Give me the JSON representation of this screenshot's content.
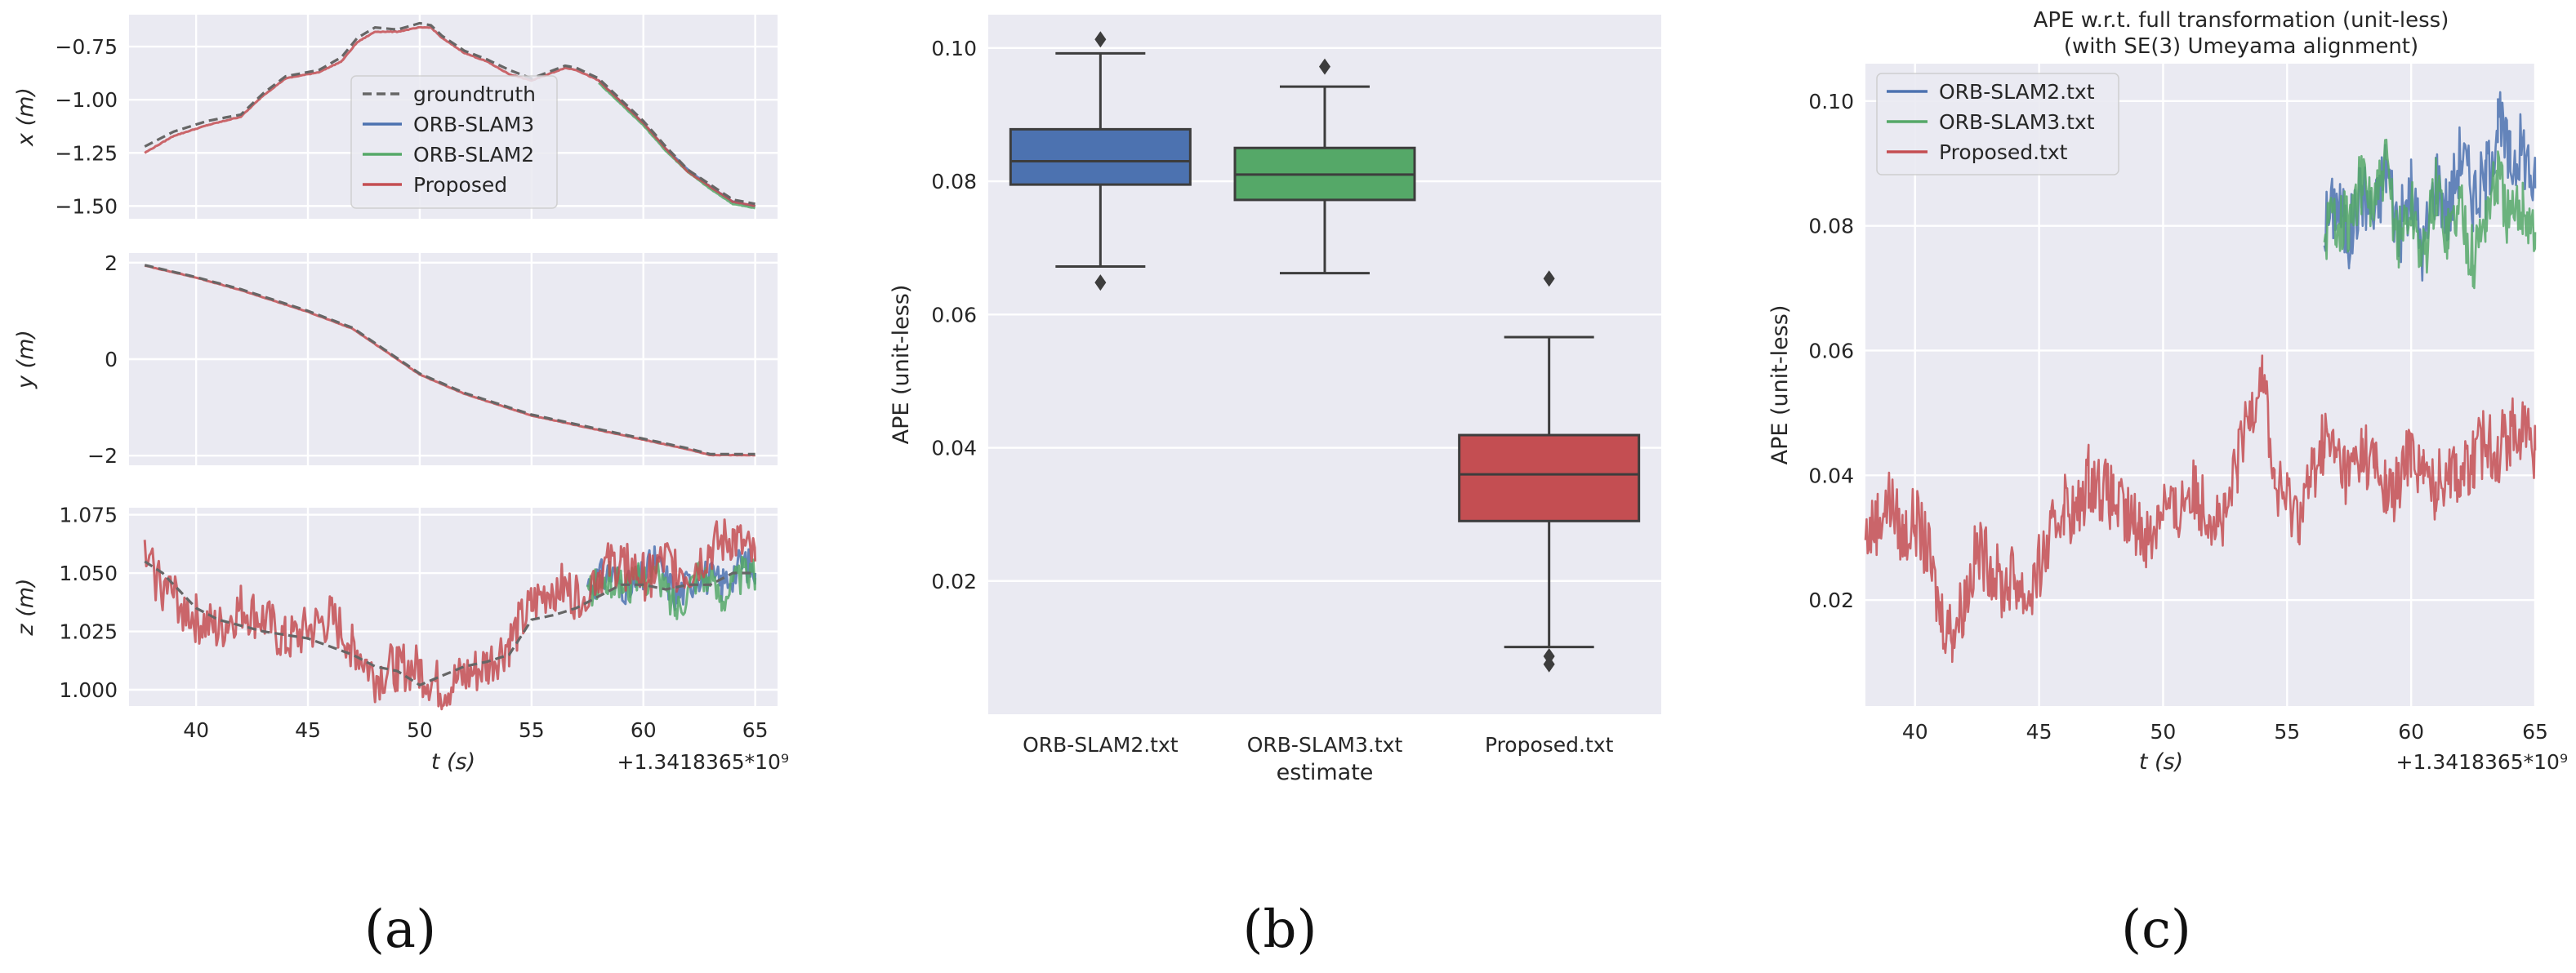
{
  "colors": {
    "groundtruth": "#666666",
    "orb_slam3": "#4c72b0",
    "orb_slam2": "#55a868",
    "proposed": "#c44e52",
    "axes_bg": "#eaeaf2"
  },
  "chart_data": [
    {
      "type": "line",
      "panel": "a",
      "panel_label": "(a)",
      "xlabel": "t (s)",
      "x_offset_label": "+1.3418365*10⁹",
      "xlim": [
        37,
        66
      ],
      "x_ticks": [
        40,
        45,
        50,
        55,
        60,
        65
      ],
      "legend": [
        "groundtruth",
        "ORB-SLAM3",
        "ORB-SLAM2",
        "Proposed"
      ],
      "legend_position": "upper-center of x subplot",
      "subplots": [
        {
          "ylabel": "x (m)",
          "ylim": [
            -1.56,
            -0.6
          ],
          "y_ticks": [
            -0.75,
            -1.0,
            -1.25,
            -1.5
          ],
          "y_tick_labels": [
            "−0.75",
            "−1.00",
            "−1.25",
            "−1.50"
          ],
          "series": [
            {
              "name": "groundtruth",
              "x": [
                37.7,
                39,
                40.5,
                42,
                43,
                44,
                45.5,
                46.5,
                47.2,
                48,
                49,
                50,
                50.5,
                51,
                52,
                53,
                54,
                55,
                56,
                56.5,
                57,
                58,
                59,
                60,
                61,
                62,
                63,
                64,
                65
              ],
              "values": [
                -1.22,
                -1.15,
                -1.1,
                -1.07,
                -0.97,
                -0.89,
                -0.86,
                -0.8,
                -0.71,
                -0.66,
                -0.67,
                -0.64,
                -0.65,
                -0.7,
                -0.77,
                -0.81,
                -0.86,
                -0.9,
                -0.86,
                -0.84,
                -0.85,
                -0.9,
                -1.0,
                -1.1,
                -1.22,
                -1.33,
                -1.4,
                -1.47,
                -1.49
              ]
            },
            {
              "name": "ORB-SLAM3",
              "x": [
                58,
                59,
                60,
                61,
                62,
                63,
                64,
                65
              ],
              "values": [
                -0.91,
                -1.01,
                -1.11,
                -1.23,
                -1.33,
                -1.41,
                -1.48,
                -1.5
              ]
            },
            {
              "name": "ORB-SLAM2",
              "x": [
                58,
                59,
                60,
                61,
                62,
                63,
                64,
                65
              ],
              "values": [
                -0.92,
                -1.02,
                -1.12,
                -1.24,
                -1.34,
                -1.42,
                -1.49,
                -1.51
              ]
            },
            {
              "name": "Proposed",
              "x": [
                37.7,
                39,
                40.5,
                42,
                43,
                44,
                45.5,
                46.5,
                47.2,
                48,
                49,
                50,
                50.5,
                51,
                52,
                53,
                54,
                55,
                56,
                56.5,
                57,
                58,
                59,
                60,
                61,
                62,
                63,
                64,
                65
              ],
              "values": [
                -1.25,
                -1.17,
                -1.12,
                -1.08,
                -0.98,
                -0.9,
                -0.87,
                -0.82,
                -0.73,
                -0.68,
                -0.68,
                -0.66,
                -0.66,
                -0.71,
                -0.78,
                -0.82,
                -0.88,
                -0.91,
                -0.87,
                -0.85,
                -0.86,
                -0.91,
                -1.01,
                -1.11,
                -1.23,
                -1.34,
                -1.41,
                -1.48,
                -1.5
              ]
            }
          ]
        },
        {
          "ylabel": "y (m)",
          "ylim": [
            -2.2,
            2.2
          ],
          "y_ticks": [
            2,
            0,
            -2
          ],
          "y_tick_labels": [
            "2",
            "0",
            "−2"
          ],
          "series": [
            {
              "name": "groundtruth",
              "x": [
                37.7,
                40,
                42,
                45,
                47,
                50,
                52,
                55,
                57,
                60,
                62,
                63,
                65
              ],
              "values": [
                1.95,
                1.7,
                1.45,
                1.0,
                0.65,
                -0.3,
                -0.7,
                -1.15,
                -1.35,
                -1.65,
                -1.85,
                -1.97,
                -1.97
              ]
            },
            {
              "name": "Proposed",
              "x": [
                37.7,
                40,
                42,
                45,
                47,
                50,
                52,
                55,
                57,
                60,
                62,
                63,
                65
              ],
              "values": [
                1.94,
                1.69,
                1.43,
                0.98,
                0.63,
                -0.32,
                -0.72,
                -1.17,
                -1.37,
                -1.67,
                -1.87,
                -1.99,
                -1.99
              ]
            }
          ]
        },
        {
          "ylabel": "z (m)",
          "ylim": [
            0.993,
            1.078
          ],
          "y_ticks": [
            1.075,
            1.05,
            1.025,
            1.0
          ],
          "y_tick_labels": [
            "1.075",
            "1.050",
            "1.025",
            "1.000"
          ],
          "series": [
            {
              "name": "groundtruth",
              "x": [
                37.7,
                38.5,
                40,
                41,
                43,
                45,
                47,
                48,
                49,
                50,
                52,
                53,
                54,
                55,
                56,
                57,
                58,
                59,
                60,
                61,
                62,
                63,
                64,
                65
              ],
              "values": [
                1.055,
                1.05,
                1.035,
                1.03,
                1.025,
                1.022,
                1.015,
                1.01,
                1.008,
                1.002,
                1.01,
                1.012,
                1.015,
                1.03,
                1.032,
                1.035,
                1.04,
                1.045,
                1.045,
                1.043,
                1.045,
                1.045,
                1.05,
                1.05
              ]
            },
            {
              "name": "ORB-SLAM3",
              "x": [
                57.5,
                58.5,
                59.5,
                60.5,
                61.5,
                62.5,
                63.5,
                64.5,
                65
              ],
              "values": [
                1.045,
                1.05,
                1.042,
                1.055,
                1.04,
                1.05,
                1.045,
                1.055,
                1.05
              ]
            },
            {
              "name": "ORB-SLAM2",
              "x": [
                57.5,
                58.5,
                59.5,
                60.5,
                61.5,
                62.5,
                63.5,
                64.5,
                65
              ],
              "values": [
                1.042,
                1.047,
                1.045,
                1.05,
                1.035,
                1.052,
                1.04,
                1.05,
                1.048
              ]
            },
            {
              "name": "Proposed",
              "x": [
                37.7,
                38.5,
                40,
                41,
                42,
                43,
                44,
                45,
                46,
                47,
                48,
                49,
                50,
                51,
                52,
                53,
                54,
                55,
                56,
                57,
                58,
                59,
                60,
                61,
                62,
                63,
                64,
                65
              ],
              "values": [
                1.055,
                1.045,
                1.03,
                1.025,
                1.035,
                1.03,
                1.02,
                1.025,
                1.03,
                1.02,
                1.005,
                1.01,
                1.008,
                1.0,
                1.005,
                1.01,
                1.02,
                1.035,
                1.045,
                1.04,
                1.05,
                1.055,
                1.048,
                1.055,
                1.05,
                1.06,
                1.065,
                1.055
              ]
            }
          ]
        }
      ]
    },
    {
      "type": "box",
      "panel": "b",
      "panel_label": "(b)",
      "xlabel": "estimate",
      "ylabel": "APE (unit-less)",
      "ylim": [
        0.0,
        0.105
      ],
      "y_ticks": [
        0.02,
        0.04,
        0.06,
        0.08,
        0.1
      ],
      "y_tick_labels": [
        "0.02",
        "0.04",
        "0.06",
        "0.08",
        "0.10"
      ],
      "categories": [
        "ORB-SLAM2.txt",
        "ORB-SLAM3.txt",
        "Proposed.txt"
      ],
      "boxes": [
        {
          "name": "ORB-SLAM2.txt",
          "whisker_low": 0.0672,
          "q1": 0.0795,
          "median": 0.083,
          "q3": 0.0878,
          "whisker_high": 0.0992,
          "outliers": [
            0.1013,
            0.0648
          ]
        },
        {
          "name": "ORB-SLAM3.txt",
          "whisker_low": 0.0662,
          "q1": 0.0772,
          "median": 0.081,
          "q3": 0.085,
          "whisker_high": 0.0942,
          "outliers": [
            0.0972
          ]
        },
        {
          "name": "Proposed.txt",
          "whisker_low": 0.0101,
          "q1": 0.029,
          "median": 0.036,
          "q3": 0.0419,
          "whisker_high": 0.0566,
          "outliers": [
            0.0654,
            0.0087,
            0.0075
          ]
        }
      ]
    },
    {
      "type": "line",
      "panel": "c",
      "panel_label": "(c)",
      "title": "APE w.r.t. full transformation (unit-less)",
      "subtitle": "(with SE(3) Umeyama alignment)",
      "xlabel": "t (s)",
      "x_offset_label": "+1.3418365*10⁹",
      "ylabel": "APE (unit-less)",
      "xlim": [
        38,
        65
      ],
      "ylim": [
        0.003,
        0.106
      ],
      "x_ticks": [
        40,
        45,
        50,
        55,
        60,
        65
      ],
      "y_ticks": [
        0.02,
        0.04,
        0.06,
        0.08,
        0.1
      ],
      "y_tick_labels": [
        "0.02",
        "0.04",
        "0.06",
        "0.08",
        "0.10"
      ],
      "legend": [
        "ORB-SLAM2.txt",
        "ORB-SLAM3.txt",
        "Proposed.txt"
      ],
      "legend_position": "top-left",
      "series": [
        {
          "name": "ORB-SLAM2.txt",
          "x": [
            56.5,
            57,
            57.5,
            58,
            58.5,
            59,
            59.5,
            60,
            60.5,
            61,
            61.5,
            62,
            62.5,
            63,
            63.5,
            64,
            64.5,
            65
          ],
          "values": [
            0.08,
            0.084,
            0.078,
            0.086,
            0.081,
            0.09,
            0.079,
            0.085,
            0.076,
            0.088,
            0.082,
            0.092,
            0.085,
            0.087,
            0.097,
            0.09,
            0.093,
            0.086
          ]
        },
        {
          "name": "ORB-SLAM3.txt",
          "x": [
            56.5,
            57,
            57.5,
            58,
            58.5,
            59,
            59.5,
            60,
            60.5,
            61,
            61.5,
            62,
            62.5,
            63,
            63.5,
            64,
            64.5,
            65
          ],
          "values": [
            0.079,
            0.082,
            0.08,
            0.087,
            0.083,
            0.089,
            0.078,
            0.083,
            0.075,
            0.086,
            0.079,
            0.084,
            0.074,
            0.082,
            0.088,
            0.08,
            0.084,
            0.079
          ]
        },
        {
          "name": "Proposed.txt",
          "x": [
            38,
            38.5,
            39,
            39.5,
            40,
            40.5,
            41,
            41.5,
            42,
            42.5,
            43,
            43.5,
            44,
            44.5,
            45,
            45.5,
            46,
            46.5,
            47,
            47.5,
            48,
            48.5,
            49,
            49.5,
            50,
            50.5,
            51,
            51.5,
            52,
            52.5,
            53,
            53.5,
            54,
            54.5,
            55,
            55.5,
            56,
            56.5,
            57,
            57.5,
            58,
            58.5,
            59,
            59.5,
            60,
            60.5,
            61,
            61.5,
            62,
            62.5,
            63,
            63.5,
            64,
            64.5,
            65
          ],
          "values": [
            0.03,
            0.033,
            0.036,
            0.03,
            0.033,
            0.028,
            0.018,
            0.015,
            0.02,
            0.028,
            0.026,
            0.022,
            0.024,
            0.02,
            0.025,
            0.03,
            0.036,
            0.033,
            0.04,
            0.038,
            0.036,
            0.033,
            0.032,
            0.03,
            0.036,
            0.033,
            0.038,
            0.036,
            0.034,
            0.032,
            0.042,
            0.05,
            0.058,
            0.038,
            0.036,
            0.034,
            0.04,
            0.046,
            0.043,
            0.04,
            0.044,
            0.042,
            0.037,
            0.038,
            0.045,
            0.04,
            0.038,
            0.042,
            0.04,
            0.042,
            0.046,
            0.044,
            0.047,
            0.048,
            0.044
          ]
        }
      ]
    }
  ]
}
